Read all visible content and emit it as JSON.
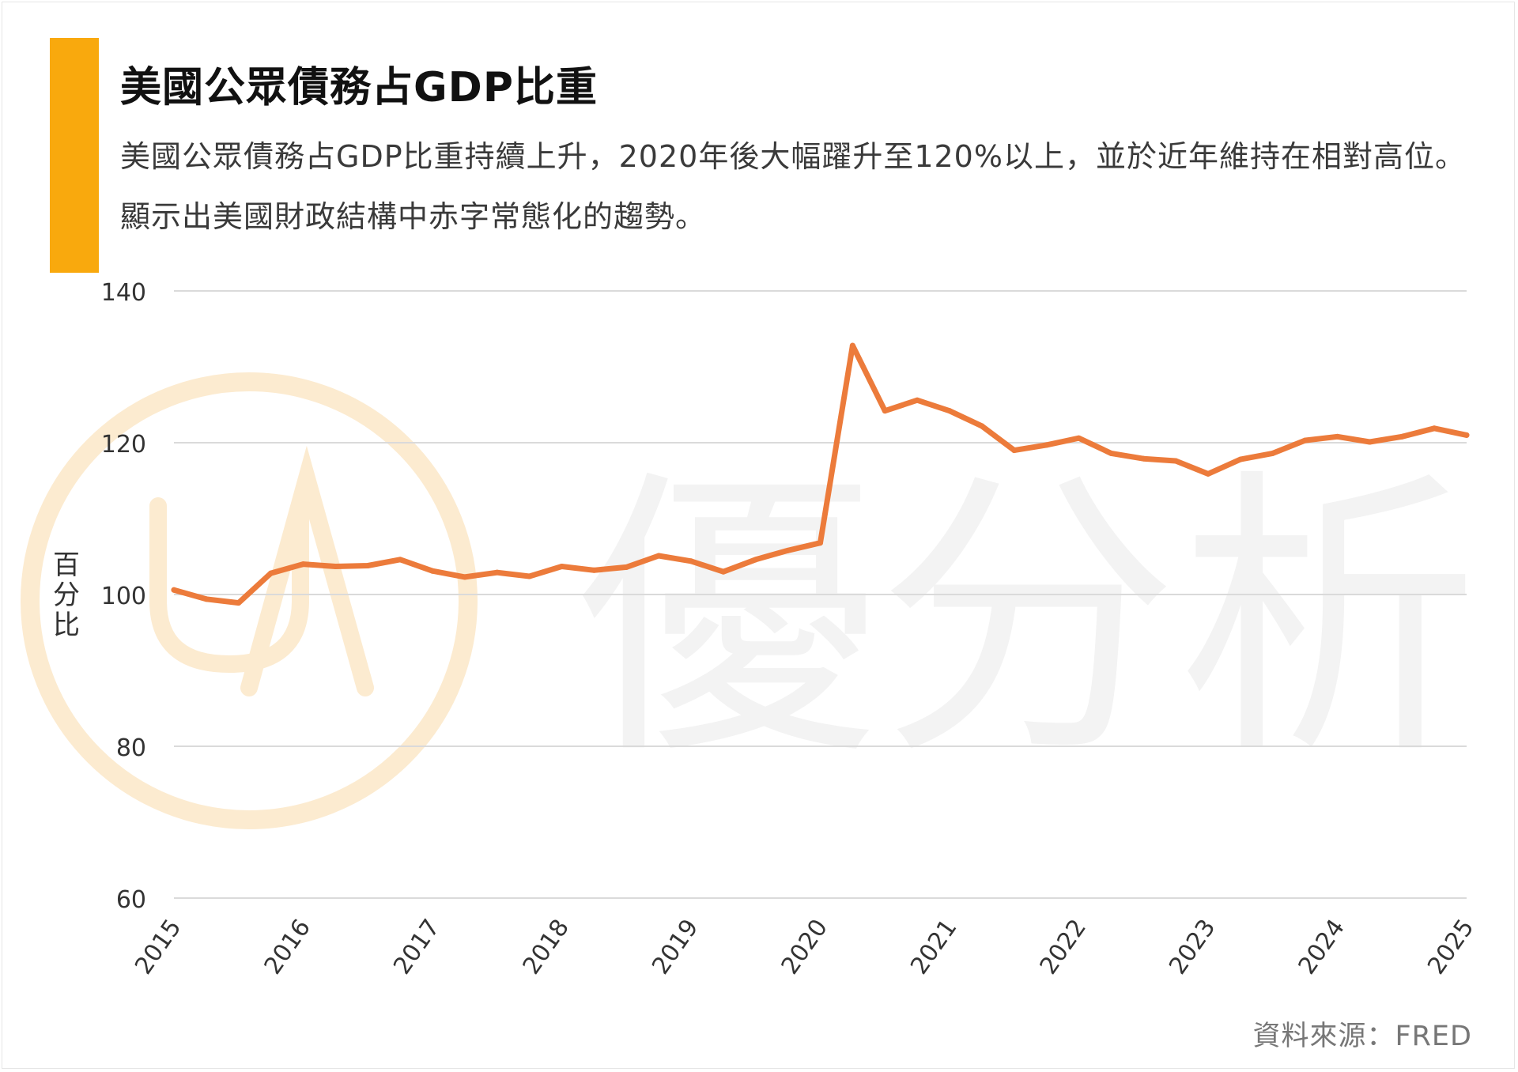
{
  "colors": {
    "accent": "#F9A90D",
    "line": "#EC7B3B",
    "grid": "#DADADA",
    "watermark_ring": "#FCEBD0",
    "watermark_text": "#F3F3F3"
  },
  "header": {
    "title": "美國公眾債務占GDP比重",
    "subtitle": "美國公眾債務占GDP比重持續上升，2020年後大幅躍升至120%以上，並於近年維持在相對高位。顯示出美國財政結構中赤字常態化的趨勢。"
  },
  "watermark": {
    "text": "優分析"
  },
  "footer": {
    "source": "資料來源：FRED"
  },
  "chart_data": {
    "type": "line",
    "title": "美國公眾債務占GDP比重",
    "ylabel": "百分比",
    "xlabel": "",
    "ylim": [
      60,
      140
    ],
    "yticks": [
      60,
      80,
      100,
      120,
      140
    ],
    "xlim": [
      2015,
      2025
    ],
    "xticks": [
      "2015",
      "2016",
      "2017",
      "2018",
      "2019",
      "2020",
      "2021",
      "2022",
      "2023",
      "2024",
      "2025"
    ],
    "grid": true,
    "legend": "none",
    "series": [
      {
        "x": [
          "2015-Q1",
          "2015-Q2",
          "2015-Q3",
          "2015-Q4",
          "2016-Q1",
          "2016-Q2",
          "2016-Q3",
          "2016-Q4",
          "2017-Q1",
          "2017-Q2",
          "2017-Q3",
          "2017-Q4",
          "2018-Q1",
          "2018-Q2",
          "2018-Q3",
          "2018-Q4",
          "2019-Q1",
          "2019-Q2",
          "2019-Q3",
          "2019-Q4",
          "2020-Q1",
          "2020-Q2",
          "2020-Q3",
          "2020-Q4",
          "2021-Q1",
          "2021-Q2",
          "2021-Q3",
          "2021-Q4",
          "2022-Q1",
          "2022-Q2",
          "2022-Q3",
          "2022-Q4",
          "2023-Q1",
          "2023-Q2",
          "2023-Q3",
          "2023-Q4",
          "2024-Q1",
          "2024-Q2",
          "2024-Q3",
          "2024-Q4",
          "2025-Q1"
        ],
        "values": [
          100.6,
          99.4,
          98.9,
          102.8,
          104.0,
          103.7,
          103.8,
          104.6,
          103.1,
          102.3,
          102.9,
          102.4,
          103.7,
          103.2,
          103.6,
          105.1,
          104.4,
          103.0,
          104.6,
          105.8,
          106.8,
          132.8,
          124.2,
          125.6,
          124.2,
          122.2,
          119.0,
          119.7,
          120.6,
          118.6,
          117.9,
          117.6,
          115.9,
          117.8,
          118.6,
          120.3,
          120.8,
          120.1,
          120.8,
          121.9,
          121.0
        ]
      }
    ]
  }
}
